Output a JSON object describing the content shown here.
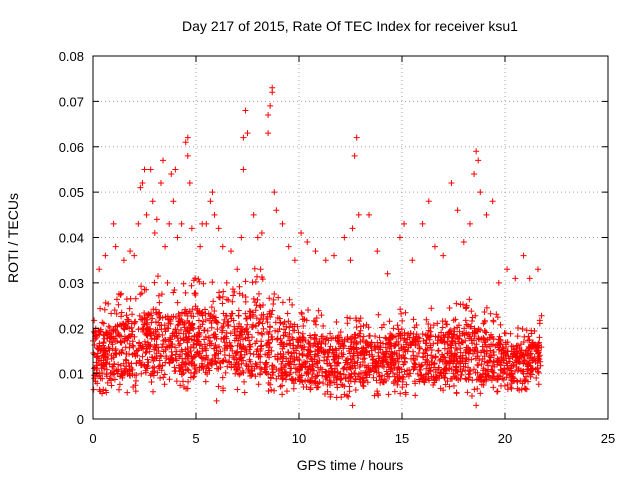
{
  "chart_data": {
    "type": "scatter",
    "title": "Day 217 of 2015, Rate Of TEC Index for receiver ksu1",
    "xlabel": "GPS time / hours",
    "ylabel": "ROTI / TECUs",
    "xlim": [
      0,
      25
    ],
    "ylim": [
      0,
      0.08
    ],
    "xticks": [
      0,
      5,
      10,
      15,
      20,
      25
    ],
    "yticks": [
      0,
      0.01,
      0.02,
      0.03,
      0.04,
      0.05,
      0.06,
      0.07,
      0.08
    ],
    "xtick_labels": [
      "0",
      "5",
      "10",
      "15",
      "20",
      "25"
    ],
    "ytick_labels": [
      "0",
      "0.01",
      "0.02",
      "0.03",
      "0.04",
      "0.05",
      "0.06",
      "0.07",
      "0.08"
    ],
    "grid": true,
    "marker": "+",
    "series": [
      {
        "name": "ROTI",
        "color": "#ff0000",
        "x_range": [
          0,
          21.8
        ],
        "points_shown": "representative sample of dense cloud",
        "band_by_hour": [
          {
            "t": 0.0,
            "lo": 0.006,
            "hi": 0.025
          },
          {
            "t": 1.0,
            "lo": 0.005,
            "hi": 0.027
          },
          {
            "t": 2.0,
            "lo": 0.006,
            "hi": 0.03
          },
          {
            "t": 3.0,
            "lo": 0.006,
            "hi": 0.032
          },
          {
            "t": 4.0,
            "lo": 0.006,
            "hi": 0.03
          },
          {
            "t": 5.0,
            "lo": 0.006,
            "hi": 0.032
          },
          {
            "t": 6.0,
            "lo": 0.006,
            "hi": 0.03
          },
          {
            "t": 7.0,
            "lo": 0.006,
            "hi": 0.03
          },
          {
            "t": 8.0,
            "lo": 0.005,
            "hi": 0.034
          },
          {
            "t": 9.0,
            "lo": 0.005,
            "hi": 0.03
          },
          {
            "t": 10.0,
            "lo": 0.005,
            "hi": 0.025
          },
          {
            "t": 11.0,
            "lo": 0.005,
            "hi": 0.024
          },
          {
            "t": 12.0,
            "lo": 0.004,
            "hi": 0.024
          },
          {
            "t": 13.0,
            "lo": 0.005,
            "hi": 0.025
          },
          {
            "t": 14.0,
            "lo": 0.005,
            "hi": 0.024
          },
          {
            "t": 15.0,
            "lo": 0.005,
            "hi": 0.025
          },
          {
            "t": 16.0,
            "lo": 0.005,
            "hi": 0.025
          },
          {
            "t": 17.0,
            "lo": 0.006,
            "hi": 0.024
          },
          {
            "t": 18.0,
            "lo": 0.005,
            "hi": 0.028
          },
          {
            "t": 19.0,
            "lo": 0.005,
            "hi": 0.026
          },
          {
            "t": 20.0,
            "lo": 0.006,
            "hi": 0.022
          },
          {
            "t": 21.0,
            "lo": 0.006,
            "hi": 0.02
          },
          {
            "t": 21.8,
            "lo": 0.008,
            "hi": 0.023
          }
        ],
        "outliers": [
          [
            0.3,
            0.033
          ],
          [
            0.6,
            0.036
          ],
          [
            1.0,
            0.043
          ],
          [
            1.1,
            0.038
          ],
          [
            1.5,
            0.035
          ],
          [
            1.8,
            0.037
          ],
          [
            2.0,
            0.036
          ],
          [
            2.2,
            0.043
          ],
          [
            2.3,
            0.051
          ],
          [
            2.4,
            0.052
          ],
          [
            2.5,
            0.055
          ],
          [
            2.6,
            0.045
          ],
          [
            2.8,
            0.055
          ],
          [
            2.9,
            0.048
          ],
          [
            3.0,
            0.041
          ],
          [
            3.1,
            0.044
          ],
          [
            3.3,
            0.052
          ],
          [
            3.4,
            0.057
          ],
          [
            3.5,
            0.038
          ],
          [
            3.7,
            0.043
          ],
          [
            3.8,
            0.054
          ],
          [
            3.9,
            0.048
          ],
          [
            4.0,
            0.055
          ],
          [
            4.1,
            0.04
          ],
          [
            4.3,
            0.043
          ],
          [
            4.5,
            0.061
          ],
          [
            4.6,
            0.062
          ],
          [
            4.6,
            0.058
          ],
          [
            4.7,
            0.052
          ],
          [
            4.8,
            0.042
          ],
          [
            5.2,
            0.038
          ],
          [
            5.3,
            0.043
          ],
          [
            5.5,
            0.043
          ],
          [
            5.7,
            0.048
          ],
          [
            5.8,
            0.05
          ],
          [
            5.9,
            0.045
          ],
          [
            6.1,
            0.042
          ],
          [
            6.3,
            0.038
          ],
          [
            6.7,
            0.037
          ],
          [
            7.0,
            0.033
          ],
          [
            7.2,
            0.04
          ],
          [
            7.3,
            0.055
          ],
          [
            7.3,
            0.062
          ],
          [
            7.4,
            0.068
          ],
          [
            7.5,
            0.063
          ],
          [
            7.8,
            0.045
          ],
          [
            8.0,
            0.04
          ],
          [
            8.2,
            0.041
          ],
          [
            8.5,
            0.063
          ],
          [
            8.5,
            0.067
          ],
          [
            8.6,
            0.069
          ],
          [
            8.7,
            0.072
          ],
          [
            8.7,
            0.073
          ],
          [
            8.8,
            0.05
          ],
          [
            8.9,
            0.046
          ],
          [
            9.2,
            0.043
          ],
          [
            9.5,
            0.038
          ],
          [
            9.8,
            0.035
          ],
          [
            10.1,
            0.041
          ],
          [
            10.4,
            0.039
          ],
          [
            10.8,
            0.037
          ],
          [
            11.3,
            0.035
          ],
          [
            11.7,
            0.036
          ],
          [
            12.2,
            0.04
          ],
          [
            12.5,
            0.035
          ],
          [
            12.6,
            0.042
          ],
          [
            12.7,
            0.058
          ],
          [
            12.8,
            0.062
          ],
          [
            12.9,
            0.045
          ],
          [
            13.4,
            0.045
          ],
          [
            13.8,
            0.037
          ],
          [
            14.3,
            0.032
          ],
          [
            14.9,
            0.04
          ],
          [
            15.1,
            0.043
          ],
          [
            15.5,
            0.035
          ],
          [
            16.0,
            0.043
          ],
          [
            16.3,
            0.048
          ],
          [
            16.6,
            0.038
          ],
          [
            17.0,
            0.036
          ],
          [
            17.4,
            0.052
          ],
          [
            17.7,
            0.046
          ],
          [
            18.0,
            0.039
          ],
          [
            18.3,
            0.043
          ],
          [
            18.5,
            0.054
          ],
          [
            18.6,
            0.059
          ],
          [
            18.7,
            0.057
          ],
          [
            18.8,
            0.05
          ],
          [
            19.1,
            0.045
          ],
          [
            19.4,
            0.048
          ],
          [
            19.7,
            0.03
          ],
          [
            20.1,
            0.033
          ],
          [
            20.5,
            0.031
          ],
          [
            20.9,
            0.036
          ],
          [
            21.2,
            0.031
          ],
          [
            21.6,
            0.033
          ],
          [
            12.6,
            0.003
          ],
          [
            18.6,
            0.003
          ],
          [
            6.0,
            0.004
          ]
        ]
      }
    ]
  }
}
